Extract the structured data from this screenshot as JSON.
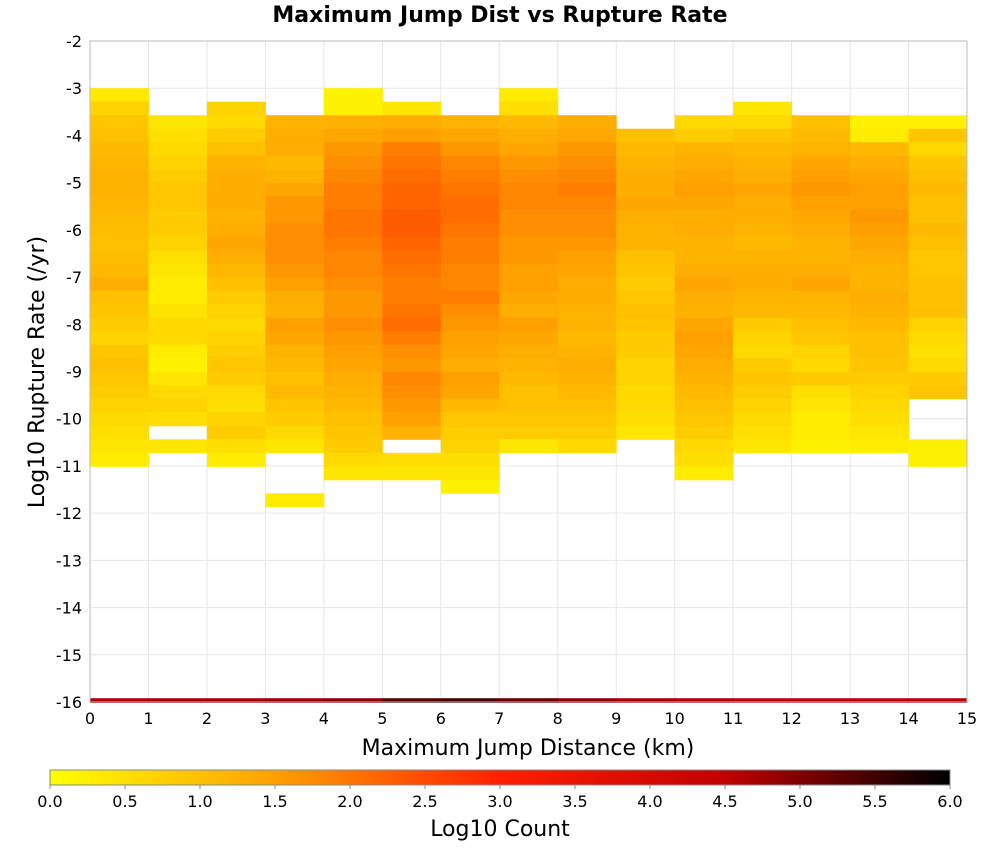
{
  "chart_data": {
    "type": "heatmap",
    "title": "Maximum Jump Dist vs Rupture Rate",
    "xlabel": "Maximum Jump Distance (km)",
    "ylabel": "Log10 Rupture Rate (/yr)",
    "xlim": [
      0,
      15
    ],
    "ylim": [
      -16,
      -2
    ],
    "xticks": [
      "0",
      "1",
      "2",
      "3",
      "4",
      "5",
      "6",
      "7",
      "8",
      "9",
      "10",
      "11",
      "12",
      "13",
      "14",
      "15"
    ],
    "yticks": [
      "-2",
      "-3",
      "-4",
      "-5",
      "-6",
      "-7",
      "-8",
      "-9",
      "-10",
      "-11",
      "-12",
      "-13",
      "-14",
      "-15",
      "-16"
    ],
    "grid": true,
    "x_bin_width_km": 1,
    "y_bin_width_log": 0.286,
    "y_bin_start": -3.0,
    "colorbar": {
      "label": "Log10 Count",
      "range": [
        0.0,
        6.0
      ],
      "ticks": [
        "0.0",
        "0.5",
        "1.0",
        "1.5",
        "2.0",
        "2.5",
        "3.0",
        "3.5",
        "4.0",
        "4.5",
        "5.0",
        "5.5",
        "6.0"
      ],
      "colors": [
        "#ffff00",
        "#ffa000",
        "#ff2000",
        "#c00000",
        "#000000"
      ]
    },
    "zero_rate_row": {
      "y": -16,
      "log10_counts": [
        4.6,
        4.7,
        4.7,
        4.8,
        4.9,
        5.3,
        5.4,
        5.2,
        4.9,
        4.7,
        4.6,
        4.5,
        4.5,
        4.5,
        4.5
      ]
    },
    "columns": [
      {
        "x": 0.5,
        "log10_counts": [
          0.35,
          0.7,
          0.9,
          1.0,
          1.1,
          1.15,
          1.2,
          1.2,
          1.15,
          1.1,
          1.05,
          1.0,
          1.05,
          1.1,
          1.3,
          1.0,
          0.9,
          0.8,
          0.7,
          0.9,
          1.0,
          0.9,
          0.8,
          0.7,
          0.6,
          0.5,
          0.4,
          0.3
        ]
      },
      {
        "x": 1.5,
        "log10_counts": [
          null,
          null,
          0.4,
          0.5,
          0.6,
          0.7,
          0.8,
          0.9,
          0.9,
          0.8,
          0.8,
          0.7,
          0.5,
          0.4,
          0.3,
          0.3,
          0.45,
          0.6,
          0.6,
          0.3,
          0.2,
          0.4,
          0.6,
          0.7,
          0.5,
          null,
          0.4
        ]
      },
      {
        "x": 2.5,
        "log10_counts": [
          null,
          0.7,
          0.6,
          0.8,
          1.0,
          1.2,
          1.3,
          1.3,
          1.3,
          1.2,
          1.3,
          1.4,
          1.3,
          1.1,
          1.0,
          0.8,
          0.7,
          0.6,
          0.7,
          0.8,
          0.9,
          0.8,
          0.6,
          0.5,
          0.7,
          0.8,
          0.5,
          0.3
        ]
      },
      {
        "x": 3.5,
        "log10_counts": [
          null,
          null,
          1.2,
          1.3,
          1.3,
          1.1,
          1.2,
          1.4,
          1.6,
          1.6,
          1.7,
          1.7,
          1.7,
          1.6,
          1.5,
          1.3,
          1.2,
          1.5,
          1.4,
          1.2,
          1.1,
          1.0,
          1.1,
          0.9,
          0.8,
          0.6,
          0.4,
          null,
          null,
          null,
          0.3
        ]
      },
      {
        "x": 4.5,
        "log10_counts": [
          0.2,
          0.2,
          1.2,
          1.4,
          1.6,
          1.7,
          1.8,
          1.9,
          1.9,
          2.0,
          2.0,
          1.9,
          1.8,
          1.8,
          1.7,
          1.6,
          1.6,
          1.7,
          1.6,
          1.5,
          1.4,
          1.3,
          1.2,
          1.1,
          1.0,
          0.9,
          0.8,
          0.6,
          0.4
        ]
      },
      {
        "x": 5.5,
        "log10_counts": [
          null,
          0.4,
          1.3,
          1.5,
          1.9,
          2.0,
          2.1,
          2.2,
          2.2,
          2.3,
          2.3,
          2.2,
          2.1,
          2.0,
          1.9,
          1.9,
          2.0,
          2.1,
          1.9,
          1.7,
          1.6,
          1.8,
          1.7,
          1.6,
          1.5,
          1.2,
          null,
          0.5,
          0.4
        ]
      },
      {
        "x": 6.5,
        "log10_counts": [
          null,
          null,
          1.2,
          1.4,
          1.6,
          1.8,
          1.9,
          2.0,
          2.1,
          2.1,
          2.0,
          1.9,
          1.9,
          1.8,
          1.8,
          1.9,
          1.7,
          1.6,
          1.5,
          1.4,
          1.3,
          1.5,
          1.4,
          1.1,
          0.9,
          0.8,
          0.7,
          0.5,
          0.4,
          0.2
        ]
      },
      {
        "x": 7.5,
        "log10_counts": [
          0.3,
          0.5,
          1.1,
          1.3,
          1.4,
          1.6,
          1.7,
          1.8,
          1.8,
          1.7,
          1.7,
          1.6,
          1.6,
          1.5,
          1.5,
          1.4,
          1.3,
          1.5,
          1.4,
          1.3,
          1.2,
          1.1,
          1.0,
          1.0,
          0.9,
          0.8,
          0.4
        ]
      },
      {
        "x": 8.5,
        "log10_counts": [
          null,
          null,
          1.3,
          1.4,
          1.6,
          1.7,
          1.8,
          1.9,
          1.8,
          1.7,
          1.7,
          1.6,
          1.5,
          1.4,
          1.3,
          1.3,
          1.2,
          1.2,
          1.1,
          1.2,
          1.3,
          1.2,
          1.1,
          1.0,
          0.9,
          0.8,
          0.6
        ]
      },
      {
        "x": 9.5,
        "log10_counts": [
          null,
          null,
          null,
          1.0,
          1.1,
          1.2,
          1.3,
          1.3,
          1.4,
          1.3,
          1.2,
          1.2,
          1.0,
          0.9,
          0.8,
          0.9,
          1.0,
          0.9,
          0.8,
          0.8,
          0.7,
          0.7,
          0.6,
          0.6,
          0.5,
          0.4
        ]
      },
      {
        "x": 10.5,
        "log10_counts": [
          null,
          null,
          0.6,
          0.8,
          1.2,
          1.3,
          1.4,
          1.5,
          1.4,
          1.3,
          1.3,
          1.2,
          1.2,
          1.3,
          1.4,
          1.3,
          1.2,
          1.4,
          1.5,
          1.4,
          1.3,
          1.2,
          1.1,
          1.0,
          0.9,
          0.8,
          0.6,
          0.5,
          0.3
        ]
      },
      {
        "x": 11.5,
        "log10_counts": [
          null,
          0.4,
          0.6,
          0.9,
          1.1,
          1.2,
          1.3,
          1.4,
          1.3,
          1.3,
          1.2,
          1.1,
          1.2,
          1.3,
          1.3,
          1.2,
          1.1,
          0.8,
          0.7,
          0.6,
          0.8,
          0.9,
          0.8,
          0.7,
          0.6,
          0.5,
          0.4
        ]
      },
      {
        "x": 12.5,
        "log10_counts": [
          null,
          null,
          1.0,
          1.1,
          1.2,
          1.4,
          1.5,
          1.6,
          1.5,
          1.4,
          1.3,
          1.2,
          1.2,
          1.3,
          1.4,
          1.2,
          1.1,
          1.0,
          0.9,
          0.7,
          0.6,
          0.8,
          0.5,
          0.4,
          0.3,
          0.3,
          0.2
        ]
      },
      {
        "x": 13.5,
        "log10_counts": [
          null,
          null,
          0.2,
          0.3,
          1.1,
          1.3,
          1.4,
          1.5,
          1.5,
          1.6,
          1.5,
          1.4,
          1.3,
          1.2,
          1.2,
          1.3,
          1.2,
          1.1,
          1.0,
          1.0,
          0.9,
          0.8,
          0.7,
          0.6,
          0.5,
          0.4,
          0.3
        ]
      },
      {
        "x": 14.5,
        "log10_counts": [
          null,
          null,
          0.2,
          0.9,
          0.6,
          0.9,
          1.0,
          1.1,
          1.0,
          1.0,
          1.1,
          1.0,
          0.9,
          0.9,
          1.0,
          1.0,
          1.0,
          0.7,
          0.6,
          0.5,
          0.6,
          0.8,
          0.9,
          null,
          null,
          null,
          0.2,
          0.2
        ]
      }
    ]
  }
}
